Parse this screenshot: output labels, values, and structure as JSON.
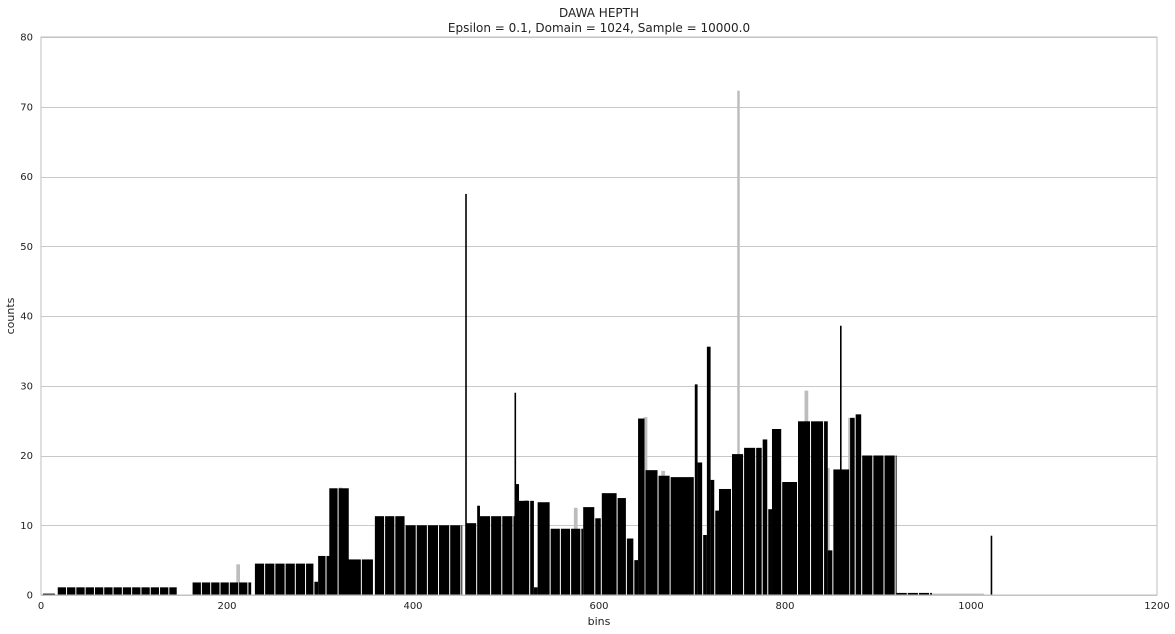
{
  "chart_data": {
    "type": "bar",
    "title": "DAWA HEPTH",
    "subtitle": "Epsilon = 0.1, Domain = 1024, Sample = 10000.0",
    "xlabel": "bins",
    "ylabel": "counts",
    "xlim": [
      0,
      1200
    ],
    "ylim": [
      0,
      80
    ],
    "xticks": [
      0,
      200,
      400,
      600,
      800,
      1000,
      1200
    ],
    "yticks": [
      0,
      10,
      20,
      30,
      40,
      50,
      60,
      70,
      80
    ],
    "grid": "horizontal",
    "colors": {
      "estimate": "#000000",
      "truth": "#bdbdbd",
      "grid": "#c8c8c8"
    },
    "series": [
      {
        "kind": "estimate",
        "bars": [
          {
            "start": 2,
            "end": 16,
            "value": 0.2
          },
          {
            "start": 18,
            "end": 147,
            "value": 1.1,
            "width": 10
          },
          {
            "start": 163,
            "end": 226,
            "value": 1.8,
            "width": 10
          },
          {
            "start": 230,
            "end": 294,
            "value": 4.5,
            "width": 11
          },
          {
            "start": 294,
            "end": 298,
            "value": 1.9
          },
          {
            "start": 298,
            "end": 307,
            "value": 5.6
          },
          {
            "start": 307,
            "end": 316,
            "value": 5.6
          },
          {
            "start": 310,
            "end": 320,
            "value": 15.3
          },
          {
            "start": 320,
            "end": 332,
            "value": 15.3
          },
          {
            "start": 330,
            "end": 345,
            "value": 5.1
          },
          {
            "start": 345,
            "end": 358,
            "value": 5.1
          },
          {
            "start": 359,
            "end": 392,
            "value": 11.3,
            "width": 11
          },
          {
            "start": 392,
            "end": 453,
            "value": 10.0,
            "width": 12
          },
          {
            "start": 457,
            "end": 469,
            "value": 10.3
          },
          {
            "start": 469,
            "end": 472,
            "value": 12.8
          },
          {
            "start": 472,
            "end": 510,
            "value": 11.3,
            "width": 12
          },
          {
            "start": 510,
            "end": 514,
            "value": 15.9
          },
          {
            "start": 514,
            "end": 526,
            "value": 13.5
          },
          {
            "start": 526,
            "end": 530,
            "value": 13.5
          },
          {
            "start": 530,
            "end": 534,
            "value": 1.1
          },
          {
            "start": 534,
            "end": 548,
            "value": 13.3
          },
          {
            "start": 548,
            "end": 583,
            "value": 9.5,
            "width": 11
          },
          {
            "start": 583,
            "end": 596,
            "value": 12.6
          },
          {
            "start": 596,
            "end": 603,
            "value": 11.0
          },
          {
            "start": 603,
            "end": 620,
            "value": 14.6
          },
          {
            "start": 620,
            "end": 630,
            "value": 13.9
          },
          {
            "start": 630,
            "end": 638,
            "value": 8.1
          },
          {
            "start": 638,
            "end": 642,
            "value": 5.0
          },
          {
            "start": 642,
            "end": 650,
            "value": 25.3
          },
          {
            "start": 650,
            "end": 664,
            "value": 17.9
          },
          {
            "start": 664,
            "end": 677,
            "value": 17.1
          },
          {
            "start": 677,
            "end": 703,
            "value": 16.9
          },
          {
            "start": 703,
            "end": 706,
            "value": 30.2
          },
          {
            "start": 706,
            "end": 712,
            "value": 19.0
          },
          {
            "start": 712,
            "end": 716,
            "value": 8.6
          },
          {
            "start": 716,
            "end": 720,
            "value": 35.6
          },
          {
            "start": 720,
            "end": 725,
            "value": 16.5
          },
          {
            "start": 725,
            "end": 729,
            "value": 12.1
          },
          {
            "start": 729,
            "end": 743,
            "value": 15.2
          },
          {
            "start": 743,
            "end": 756,
            "value": 20.2
          },
          {
            "start": 756,
            "end": 769,
            "value": 21.1
          },
          {
            "start": 769,
            "end": 776,
            "value": 21.1
          },
          {
            "start": 776,
            "end": 782,
            "value": 22.3
          },
          {
            "start": 782,
            "end": 786,
            "value": 12.3
          },
          {
            "start": 786,
            "end": 797,
            "value": 23.8
          },
          {
            "start": 797,
            "end": 814,
            "value": 16.2
          },
          {
            "start": 814,
            "end": 828,
            "value": 24.9
          },
          {
            "start": 828,
            "end": 842,
            "value": 24.9
          },
          {
            "start": 842,
            "end": 846,
            "value": 24.9
          },
          {
            "start": 846,
            "end": 852,
            "value": 6.4
          },
          {
            "start": 852,
            "end": 870,
            "value": 18.0
          },
          {
            "start": 870,
            "end": 876,
            "value": 25.4
          },
          {
            "start": 876,
            "end": 883,
            "value": 25.9
          },
          {
            "start": 883,
            "end": 920,
            "value": 20.0,
            "width": 12
          },
          {
            "start": 920,
            "end": 958,
            "value": 0.3,
            "width": 12
          }
        ],
        "spikes": [
          {
            "x": 457,
            "value": 57.5
          },
          {
            "x": 510,
            "value": 29.0
          },
          {
            "x": 860,
            "value": 38.6
          },
          {
            "x": 1022,
            "value": 8.5
          }
        ]
      },
      {
        "kind": "truth",
        "bars": [
          {
            "start": 210,
            "end": 214,
            "value": 4.4
          },
          {
            "start": 320,
            "end": 324,
            "value": 15.4
          },
          {
            "start": 520,
            "end": 524,
            "value": 13.6
          },
          {
            "start": 573,
            "end": 577,
            "value": 12.5
          },
          {
            "start": 648,
            "end": 652,
            "value": 25.5
          },
          {
            "start": 667,
            "end": 671,
            "value": 17.8
          },
          {
            "start": 821,
            "end": 825,
            "value": 29.3
          },
          {
            "start": 844,
            "end": 848,
            "value": 18.2
          },
          {
            "start": 868,
            "end": 872,
            "value": 25.4
          },
          {
            "start": 958,
            "end": 1015,
            "value": 0.2
          }
        ],
        "spikes": [
          {
            "x": 750,
            "value": 72.3
          }
        ]
      }
    ]
  }
}
